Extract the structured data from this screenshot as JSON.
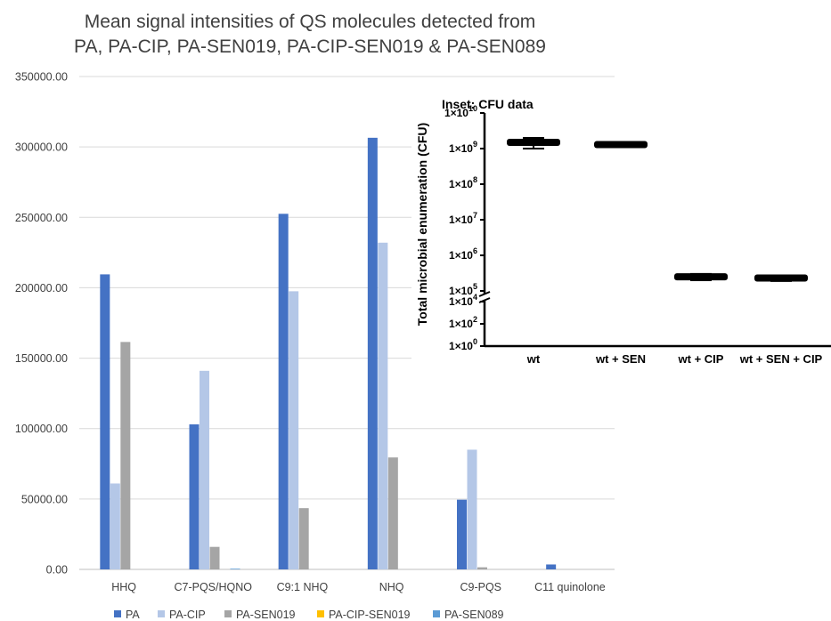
{
  "chart_data": [
    {
      "type": "bar",
      "title_lines": [
        "Mean signal intensities of QS molecules detected from",
        "PA, PA-CIP, PA-SEN019, PA-CIP-SEN019 & PA-SEN089"
      ],
      "ylim": [
        0,
        350000
      ],
      "yticks": [
        "0.00",
        "50000.00",
        "100000.00",
        "150000.00",
        "200000.00",
        "250000.00",
        "300000.00",
        "350000.00"
      ],
      "ytick_values": [
        0,
        50000,
        100000,
        150000,
        200000,
        250000,
        300000,
        350000
      ],
      "categories": [
        "HHQ",
        "C7-PQS/HQNO",
        "C9:1 NHQ",
        "NHQ",
        "C9-PQS",
        "C11 quinolone"
      ],
      "grid": true,
      "legend_position": "bottom",
      "series": [
        {
          "name": "PA",
          "color": "#4472C4",
          "values": [
            209500,
            103000,
            252500,
            306500,
            49500,
            3500
          ]
        },
        {
          "name": "PA-CIP",
          "color": "#B4C7E7",
          "values": [
            61000,
            141000,
            197500,
            232000,
            85000,
            0
          ]
        },
        {
          "name": "PA-SEN019",
          "color": "#A5A5A5",
          "values": [
            161500,
            16000,
            43500,
            79500,
            1500,
            0
          ]
        },
        {
          "name": "PA-CIP-SEN019",
          "color": "#FFC000",
          "values": [
            0,
            0,
            0,
            0,
            0,
            0
          ]
        },
        {
          "name": "PA-SEN089",
          "color": "#5B9BD5",
          "values": [
            0,
            500,
            0,
            0,
            0,
            0
          ]
        }
      ]
    },
    {
      "type": "scatter",
      "title": "Inset: CFU data",
      "ylabel": "Total microbial enumeration (CFU)",
      "yscale": "log (broken axis)",
      "yticks_upper": [
        "1×10",
        "1×10",
        "1×10",
        "1×10",
        "1×10",
        "1×10"
      ],
      "yticks_upper_exp": [
        "10",
        "9",
        "8",
        "7",
        "6",
        "5"
      ],
      "yticks_upper_values": [
        10000000000.0,
        1000000000.0,
        100000000.0,
        10000000.0,
        1000000.0,
        100000.0
      ],
      "yticks_lower": [
        "1×10",
        "1×10",
        "1×10"
      ],
      "yticks_lower_exp": [
        "4",
        "2",
        "0"
      ],
      "yticks_lower_values": [
        10000.0,
        100.0,
        1
      ],
      "categories": [
        "wt",
        "wt + SEN",
        "wt + CIP",
        "wt + SEN + CIP"
      ],
      "values": [
        1500000000.0,
        1300000000.0,
        250000.0,
        230000.0
      ],
      "error_low": [
        1000000000.0,
        1200000000.0,
        200000.0,
        190000.0
      ],
      "error_high": [
        2000000000.0,
        1500000000.0,
        300000.0,
        270000.0
      ]
    }
  ]
}
